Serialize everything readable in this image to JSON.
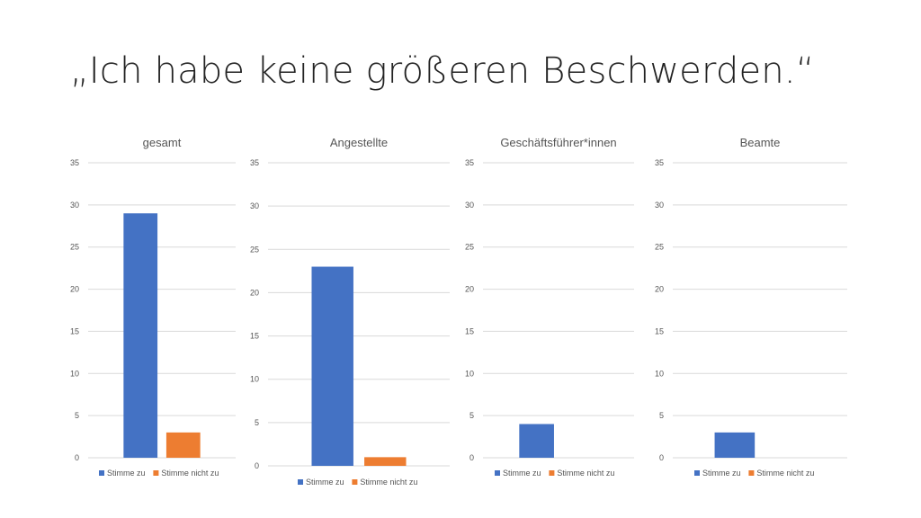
{
  "slide": {
    "title": "„Ich habe keine größeren Beschwerden.“"
  },
  "colors": {
    "series_agree": "#4472C4",
    "series_disagree": "#ED7D31",
    "gridline": "#D9D9D9",
    "text": "#595959"
  },
  "chart_data": [
    {
      "type": "bar",
      "title": "gesamt",
      "categories": [
        ""
      ],
      "series": [
        {
          "name": "Stimme zu",
          "values": [
            29
          ]
        },
        {
          "name": "Stimme nicht zu",
          "values": [
            3
          ]
        }
      ],
      "ylim": [
        0,
        35
      ],
      "yticks": [
        0,
        5,
        10,
        15,
        20,
        25,
        30,
        35
      ],
      "grid": true,
      "legend": "bottom"
    },
    {
      "type": "bar",
      "title": "Angestellte",
      "categories": [
        ""
      ],
      "series": [
        {
          "name": "Stimme zu",
          "values": [
            23
          ]
        },
        {
          "name": "Stimme nicht zu",
          "values": [
            1
          ]
        }
      ],
      "ylim": [
        0,
        35
      ],
      "yticks": [
        0,
        5,
        10,
        15,
        20,
        25,
        30,
        35
      ],
      "grid": true,
      "legend": "bottom"
    },
    {
      "type": "bar",
      "title": "Geschäftsführer*innen",
      "categories": [
        ""
      ],
      "series": [
        {
          "name": "Stimme zu",
          "values": [
            4
          ]
        },
        {
          "name": "Stimme nicht zu",
          "values": [
            0
          ]
        }
      ],
      "ylim": [
        0,
        35
      ],
      "yticks": [
        0,
        5,
        10,
        15,
        20,
        25,
        30,
        35
      ],
      "grid": true,
      "legend": "bottom"
    },
    {
      "type": "bar",
      "title": "Beamte",
      "categories": [
        ""
      ],
      "series": [
        {
          "name": "Stimme zu",
          "values": [
            3
          ]
        },
        {
          "name": "Stimme nicht zu",
          "values": [
            0
          ]
        }
      ],
      "ylim": [
        0,
        35
      ],
      "yticks": [
        0,
        5,
        10,
        15,
        20,
        25,
        30,
        35
      ],
      "grid": true,
      "legend": "bottom"
    }
  ]
}
